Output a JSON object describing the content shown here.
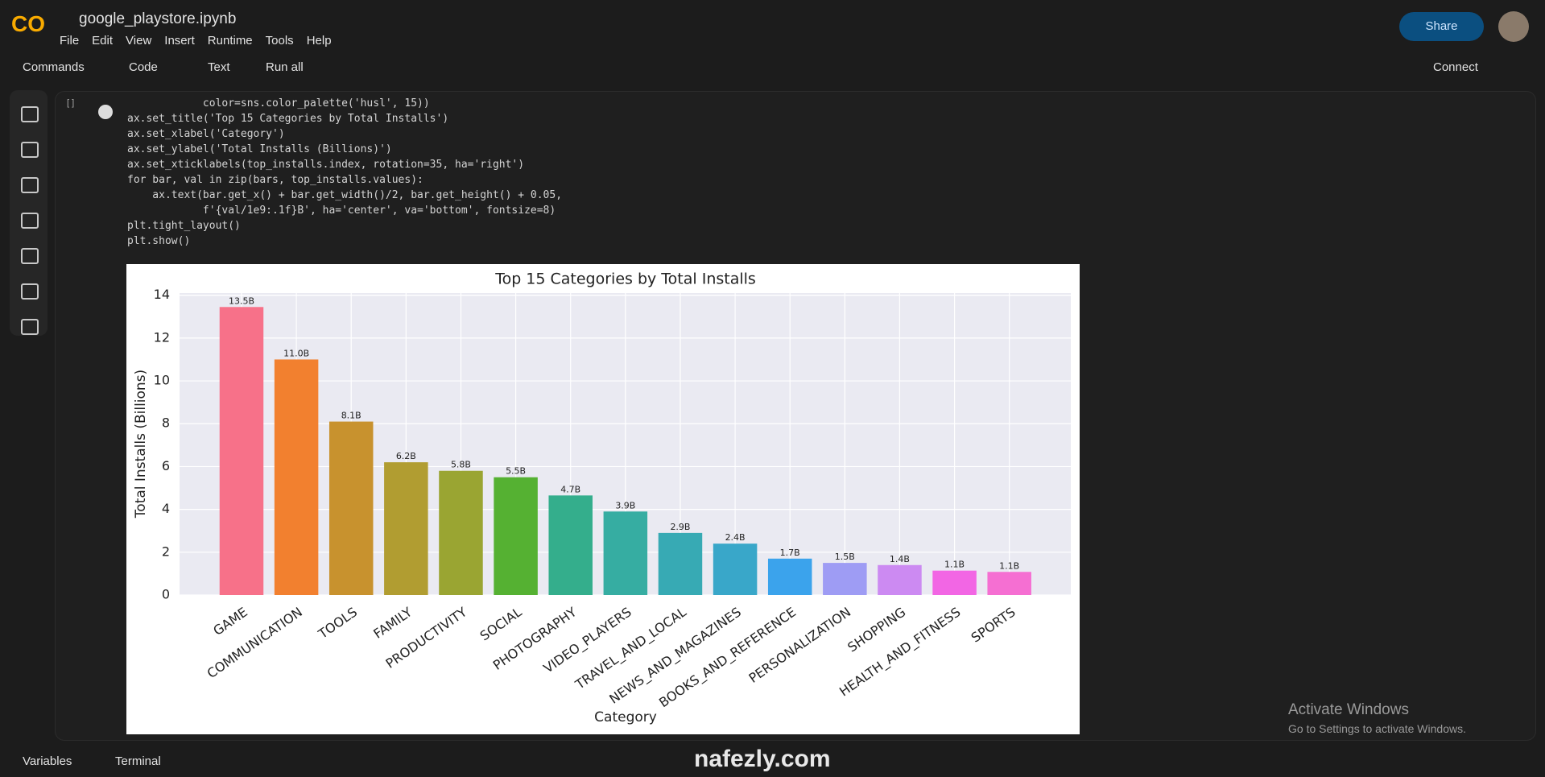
{
  "header": {
    "logo": "CO",
    "file_name": "google_playstore.ipynb",
    "menu": [
      "File",
      "Edit",
      "View",
      "Insert",
      "Runtime",
      "Tools",
      "Help"
    ],
    "share": "Share"
  },
  "toolbar": {
    "commands": "Commands",
    "code": "Code",
    "text": "Text",
    "run_all": "Run all",
    "connect": "Connect"
  },
  "cell": {
    "bracket": "[ ]",
    "lines": [
      "            color=sns.color_palette('husl', 15))",
      "ax.set_title('Top 15 Categories by Total Installs')",
      "ax.set_xlabel('Category')",
      "ax.set_ylabel('Total Installs (Billions)')",
      "ax.set_xticklabels(top_installs.index, rotation=35, ha='right')",
      "for bar, val in zip(bars, top_installs.values):",
      "    ax.text(bar.get_x() + bar.get_width()/2, bar.get_height() + 0.05,",
      "            f'{val/1e9:.1f}B', ha='center', va='bottom', fontsize=8)",
      "plt.tight_layout()",
      "plt.show()"
    ]
  },
  "chart_data": {
    "type": "bar",
    "title": "Top 15 Categories by Total Installs",
    "x_label": "Category",
    "y_label": "Total Installs (Billions)",
    "categories": [
      "GAME",
      "COMMUNICATION",
      "TOOLS",
      "FAMILY",
      "PRODUCTIVITY",
      "SOCIAL",
      "PHOTOGRAPHY",
      "VIDEO_PLAYERS",
      "TRAVEL_AND_LOCAL",
      "NEWS_AND_MAGAZINES",
      "BOOKS_AND_REFERENCE",
      "PERSONALIZATION",
      "SHOPPING",
      "HEALTH_AND_FITNESS",
      "SPORTS"
    ],
    "values": [
      13.45,
      11.0,
      8.1,
      6.2,
      5.8,
      5.5,
      4.65,
      3.9,
      2.9,
      2.4,
      1.7,
      1.5,
      1.4,
      1.14,
      1.08
    ],
    "value_labels": [
      "13.5B",
      "11.0B",
      "8.1B",
      "6.2B",
      "5.8B",
      "5.5B",
      "4.7B",
      "3.9B",
      "2.9B",
      "2.4B",
      "1.7B",
      "1.5B",
      "1.4B",
      "1.1B",
      "1.1B"
    ],
    "colors": [
      "#f77189",
      "#f2802f",
      "#c8922e",
      "#b19d31",
      "#9aa532",
      "#55b132",
      "#34ae8c",
      "#36ada2",
      "#37aab4",
      "#39a7c9",
      "#3ba3ec",
      "#9e9cf4",
      "#cc8af2",
      "#f266e4",
      "#f56fd2"
    ],
    "ylim": [
      0,
      14.1
    ],
    "yticks": [
      0,
      2,
      4,
      6,
      8,
      10,
      12,
      14
    ],
    "grid": true
  },
  "status": {
    "variables": "Variables",
    "terminal": "Terminal"
  },
  "overlay": {
    "activate": "Activate Windows",
    "activate_sub": "Go to Settings to activate Windows.",
    "watermark": "nafezly.com"
  }
}
